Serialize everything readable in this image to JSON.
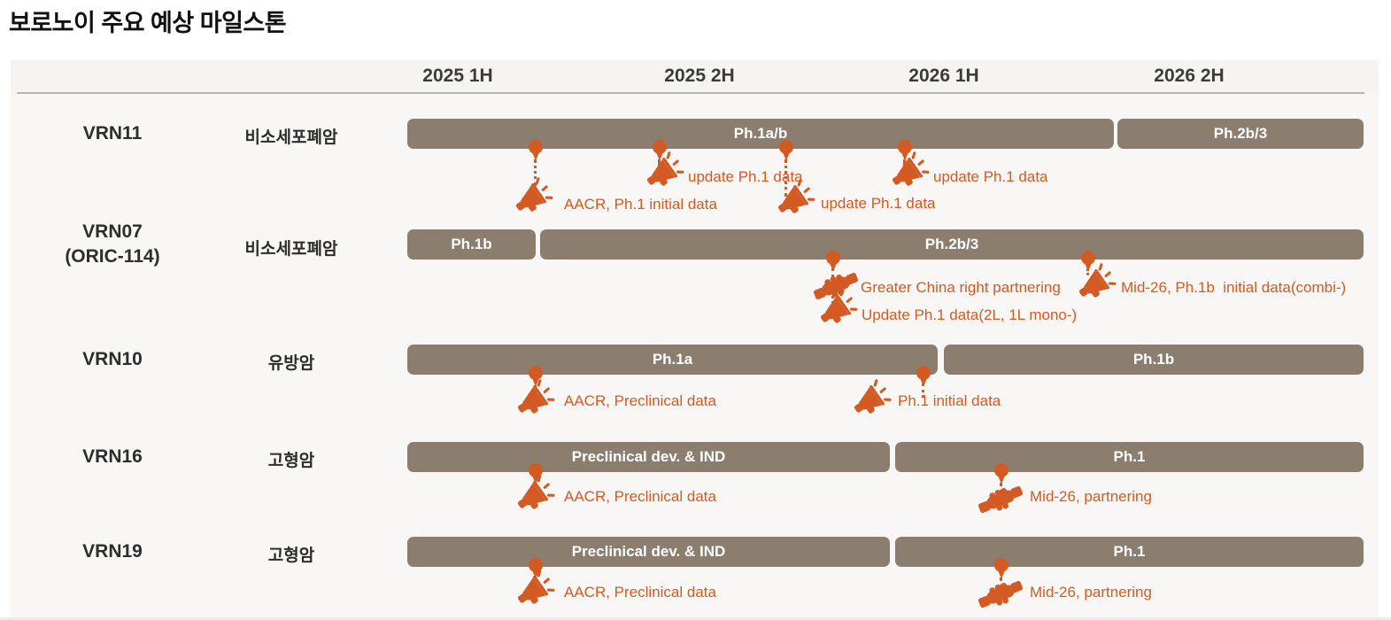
{
  "page": {
    "title": "보로노이 주요 예상 마일스톤"
  },
  "colors": {
    "bar": "#8B7E6E",
    "accent": "#D35A22",
    "header_text": "#3B3B3B",
    "bar_text": "#FFFFFF",
    "panel_bg": "#F8F7F6"
  },
  "timeline": {
    "columns": [
      "2025 1H",
      "2025 2H",
      "2026 1H",
      "2026 2H"
    ]
  },
  "rows": [
    {
      "program": "VRN11",
      "program_sub": "",
      "indication": "비소세포폐암",
      "bars": [
        {
          "label": "Ph.1a/b",
          "span": "2025 1H – 2026 1H"
        },
        {
          "label": "Ph.2b/3",
          "span": "2026 1H – 2026 2H"
        }
      ],
      "milestones": [
        {
          "icon": "megaphone",
          "label": "AACR, Ph.1 initial data",
          "timing": "2025 1H"
        },
        {
          "icon": "megaphone",
          "label": "update Ph.1 data",
          "timing": "2025 2H"
        },
        {
          "icon": "megaphone",
          "label": "update Ph.1 data",
          "timing": "2025 2H"
        },
        {
          "icon": "megaphone",
          "label": "update Ph.1 data",
          "timing": "2026 1H"
        }
      ]
    },
    {
      "program": "VRN07",
      "program_sub": "(ORIC-114)",
      "indication": "비소세포폐암",
      "bars": [
        {
          "label": "Ph.1b",
          "span": "2025 1H"
        },
        {
          "label": "Ph.2b/3",
          "span": "2025 1H – 2026 2H"
        }
      ],
      "milestones": [
        {
          "icon": "handshake",
          "label": "Greater China right partnering",
          "timing": "2025 2H"
        },
        {
          "icon": "megaphone",
          "label": "Update Ph.1 data(2L, 1L mono-)",
          "timing": "2025 2H"
        },
        {
          "icon": "megaphone",
          "label": "Mid-26, Ph.1b  initial data(combi-)",
          "timing": "2026 1H"
        }
      ]
    },
    {
      "program": "VRN10",
      "program_sub": "",
      "indication": "유방암",
      "bars": [
        {
          "label": "Ph.1a",
          "span": "2025 1H – 2026 1H"
        },
        {
          "label": "Ph.1b",
          "span": "2026 1H – 2026 2H"
        }
      ],
      "milestones": [
        {
          "icon": "megaphone",
          "label": "AACR, Preclinical data",
          "timing": "2025 1H"
        },
        {
          "icon": "megaphone",
          "label": "Ph.1 initial data",
          "timing": "2026 1H"
        }
      ]
    },
    {
      "program": "VRN16",
      "program_sub": "",
      "indication": "고형암",
      "bars": [
        {
          "label": "Preclinical dev. & IND",
          "span": "2025 1H – 2025 2H"
        },
        {
          "label": "Ph.1",
          "span": "2026 1H – 2026 2H"
        }
      ],
      "milestones": [
        {
          "icon": "megaphone",
          "label": "AACR, Preclinical data",
          "timing": "2025 1H"
        },
        {
          "icon": "handshake",
          "label": "Mid-26, partnering",
          "timing": "2026 1H"
        }
      ]
    },
    {
      "program": "VRN19",
      "program_sub": "",
      "indication": "고형암",
      "bars": [
        {
          "label": "Preclinical dev. & IND",
          "span": "2025 1H – 2025 2H"
        },
        {
          "label": "Ph.1",
          "span": "2026 1H – 2026 2H"
        }
      ],
      "milestones": [
        {
          "icon": "megaphone",
          "label": "AACR, Preclinical data",
          "timing": "2025 1H"
        },
        {
          "icon": "handshake",
          "label": "Mid-26, partnering",
          "timing": "2026 1H"
        }
      ]
    }
  ]
}
